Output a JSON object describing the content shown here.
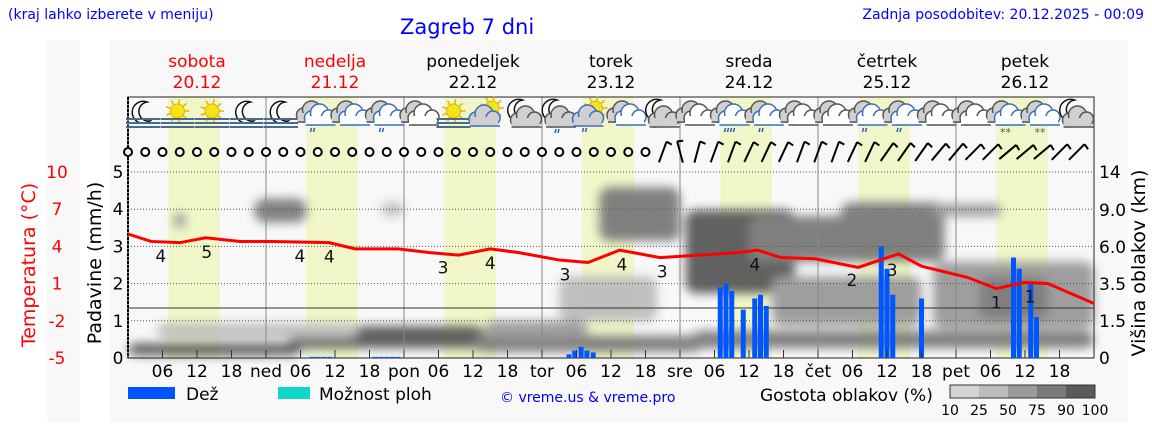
{
  "header": {
    "hint": "(kraj lahko izberete v meniju)",
    "title": "Zagreb 7 dni",
    "updated": "Zadnja posodobitev: 20.12.2025 - 00:09"
  },
  "days": [
    {
      "name": "sobota",
      "date": "20.12",
      "weekend": true
    },
    {
      "name": "nedelja",
      "date": "21.12",
      "weekend": true
    },
    {
      "name": "ponedeljek",
      "date": "22.12",
      "weekend": false
    },
    {
      "name": "torek",
      "date": "23.12",
      "weekend": false
    },
    {
      "name": "sreda",
      "date": "24.12",
      "weekend": false
    },
    {
      "name": "četrtek",
      "date": "25.12",
      "weekend": false
    },
    {
      "name": "petek",
      "date": "26.12",
      "weekend": false
    }
  ],
  "icons": [
    "moon_fog",
    "sun_fog",
    "sun_fog",
    "moon_fog",
    "moon_fog",
    "rain_light",
    "cloudy",
    "rain_light",
    "overcast",
    "sun_fog",
    "sun_cloud",
    "moon_cloud",
    "moon_cloud_rain",
    "sun_cloud_rain",
    "cloudy",
    "moon_cloud",
    "overcast",
    "rain_heavy",
    "rain_light",
    "overcast",
    "overcast",
    "rain_light",
    "rain_light",
    "overcast",
    "overcast",
    "snow",
    "snow",
    "moon_cloud"
  ],
  "wind_tilt_deg": [
    null,
    null,
    null,
    null,
    null,
    null,
    null,
    null,
    null,
    null,
    null,
    null,
    null,
    null,
    null,
    null,
    null,
    null,
    null,
    null,
    null,
    null,
    null,
    null,
    null,
    null,
    null,
    null,
    null,
    null,
    null,
    20,
    -15,
    15,
    20,
    20,
    25,
    25,
    25,
    20,
    20,
    20,
    25,
    25,
    35,
    35,
    35,
    40,
    40,
    45,
    45,
    50,
    50,
    50,
    45,
    45
  ],
  "chart_data": {
    "type": "meteogram",
    "hours_span": 168,
    "x_ticks": [
      "",
      "06",
      "12",
      "18",
      "ned",
      "06",
      "12",
      "18",
      "pon",
      "06",
      "12",
      "18",
      "tor",
      "06",
      "12",
      "18",
      "sre",
      "06",
      "12",
      "18",
      "čet",
      "06",
      "12",
      "18",
      "pet",
      "06",
      "12",
      "18"
    ],
    "daylight_hours": [
      7,
      16
    ],
    "temperature": {
      "label": "Temperatura (°C)",
      "ticks": [
        10,
        7,
        4,
        1,
        -2,
        -5
      ],
      "ylim": [
        -5,
        10
      ],
      "series": [
        [
          0,
          5.0
        ],
        [
          4,
          4.4
        ],
        [
          9,
          4.3
        ],
        [
          13.5,
          4.7
        ],
        [
          19.5,
          4.4
        ],
        [
          25,
          4.4
        ],
        [
          35,
          4.3
        ],
        [
          39.5,
          3.8
        ],
        [
          47,
          3.8
        ],
        [
          52.5,
          3.5
        ],
        [
          57.5,
          3.3
        ],
        [
          63,
          3.8
        ],
        [
          68,
          3.5
        ],
        [
          75,
          2.9
        ],
        [
          80,
          2.7
        ],
        [
          85.5,
          3.7
        ],
        [
          92.5,
          3.1
        ],
        [
          99.5,
          3.3
        ],
        [
          106,
          3.5
        ],
        [
          109.5,
          3.7
        ],
        [
          113.5,
          3.1
        ],
        [
          119.5,
          3.0
        ],
        [
          127,
          2.3
        ],
        [
          134,
          3.4
        ],
        [
          138,
          2.4
        ],
        [
          146,
          1.5
        ],
        [
          151,
          0.6
        ],
        [
          156,
          1.1
        ],
        [
          160,
          1.0
        ],
        [
          168,
          -0.6
        ]
      ],
      "labels": [
        [
          5.7,
          "4"
        ],
        [
          13.7,
          "5"
        ],
        [
          29.9,
          "4"
        ],
        [
          35,
          "4"
        ],
        [
          54.8,
          "3"
        ],
        [
          63,
          "4"
        ],
        [
          76,
          "3"
        ],
        [
          85.9,
          "4"
        ],
        [
          92.9,
          "3"
        ],
        [
          109,
          "4"
        ],
        [
          125.9,
          "2"
        ],
        [
          132.9,
          "3"
        ],
        [
          151,
          "1"
        ],
        [
          156.9,
          "1"
        ]
      ]
    },
    "precipitation": {
      "label": "Padavine (mm/h)",
      "ticks": [
        0,
        1,
        2,
        3,
        4,
        5
      ],
      "ylim": [
        0,
        5
      ],
      "series_name": "Dež",
      "bars": [
        [
          32,
          0.03
        ],
        [
          33,
          0.03
        ],
        [
          34,
          0.03
        ],
        [
          35,
          0.03
        ],
        [
          43,
          0.03
        ],
        [
          44,
          0.03
        ],
        [
          45,
          0.03
        ],
        [
          46,
          0.03
        ],
        [
          47,
          0.03
        ],
        [
          76.7,
          0.1
        ],
        [
          77.7,
          0.2
        ],
        [
          78.8,
          0.3
        ],
        [
          79.8,
          0.2
        ],
        [
          80.9,
          0.15
        ],
        [
          103,
          1.9
        ],
        [
          104,
          2.0
        ],
        [
          105,
          1.8
        ],
        [
          107,
          1.3
        ],
        [
          109,
          1.6
        ],
        [
          110,
          1.7
        ],
        [
          111,
          1.4
        ],
        [
          131,
          3.0
        ],
        [
          132,
          2.4
        ],
        [
          133,
          1.7
        ],
        [
          138,
          1.6
        ],
        [
          154,
          2.7
        ],
        [
          155,
          2.4
        ],
        [
          157,
          2.0
        ],
        [
          158,
          1.1
        ]
      ]
    },
    "cloud_height": {
      "label": "Višina oblakov (km)",
      "ticks": [
        "14",
        "9.0",
        "6.0",
        "3.5",
        "1.5",
        "0"
      ],
      "freezing_level_km": 2.2,
      "layers": [
        [
          0,
          30,
          0.1,
          0.6,
          90
        ],
        [
          28,
          62,
          0.4,
          1.3,
          90
        ],
        [
          60,
          100,
          0.25,
          0.9,
          75
        ],
        [
          98,
          168,
          0.4,
          1.1,
          75
        ],
        [
          5,
          40,
          0.8,
          1.4,
          25
        ],
        [
          62,
          80,
          0.8,
          1.5,
          50
        ],
        [
          8,
          10,
          7.5,
          8.8,
          50
        ],
        [
          22,
          31,
          8,
          10.5,
          75
        ],
        [
          44,
          48,
          8.5,
          10,
          25
        ],
        [
          75,
          92,
          1.5,
          4,
          25
        ],
        [
          82,
          96,
          6.5,
          12,
          75
        ],
        [
          97,
          116,
          3,
          9,
          90
        ],
        [
          108,
          128,
          5,
          8.5,
          75
        ],
        [
          124,
          142,
          5,
          10,
          75
        ],
        [
          112,
          138,
          1.3,
          4,
          50
        ],
        [
          140,
          168,
          1.2,
          5,
          50
        ],
        [
          148,
          160,
          1.6,
          4,
          75
        ],
        [
          140,
          152,
          8.5,
          9.8,
          50
        ]
      ]
    }
  },
  "legend": {
    "rain": "Dež",
    "showers": "Možnost ploh",
    "credit": "© vreme.us & vreme.pro",
    "cloud_density": "Gostota oblakov (%)",
    "scale": [
      "10",
      "25",
      "50",
      "75",
      "90",
      "100"
    ]
  },
  "colors": {
    "rain": "#0055ff",
    "showers": "#10d8c8",
    "temperature": "#ff0000",
    "daylight": "#f0f6c8",
    "text_link": "#0000ff"
  }
}
